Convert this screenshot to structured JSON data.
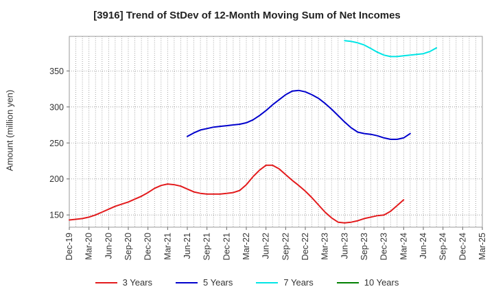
{
  "chart_data": {
    "type": "line",
    "title": "[3916]  Trend of StDev of 12-Month Moving Sum of Net Incomes",
    "xlabel": "",
    "ylabel": "Amount (million yen)",
    "x_tick_labels": [
      "Dec-19",
      "Mar-20",
      "Jun-20",
      "Sep-20",
      "Dec-20",
      "Mar-21",
      "Jun-21",
      "Sep-21",
      "Dec-21",
      "Mar-22",
      "Jun-22",
      "Sep-22",
      "Dec-22",
      "Mar-23",
      "Jun-23",
      "Sep-23",
      "Dec-23",
      "Mar-24",
      "Jun-24",
      "Sep-24",
      "Dec-24",
      "Mar-25"
    ],
    "y_ticks": [
      150,
      200,
      250,
      300,
      350
    ],
    "ylim": [
      133,
      398
    ],
    "grid": true,
    "legend_position": "bottom",
    "series": [
      {
        "name": "3 Years",
        "color": "#e31a1c",
        "start_index": 0,
        "values": [
          143,
          144,
          145,
          147,
          150,
          154,
          158,
          162,
          165,
          168,
          172,
          176,
          181,
          187,
          191,
          193,
          192,
          190,
          186,
          182,
          180,
          179,
          179,
          179,
          180,
          181,
          184,
          192,
          203,
          212,
          219,
          219,
          214,
          206,
          198,
          191,
          183,
          174,
          164,
          154,
          146,
          140,
          139,
          140,
          142,
          145,
          147,
          149,
          150,
          155,
          163,
          171
        ]
      },
      {
        "name": "5 Years",
        "color": "#0000cc",
        "start_index": 18,
        "values": [
          259,
          264,
          268,
          270,
          272,
          273,
          274,
          275,
          276,
          278,
          282,
          288,
          295,
          303,
          310,
          317,
          322,
          323,
          321,
          317,
          312,
          305,
          297,
          288,
          279,
          271,
          265,
          263,
          262,
          260,
          257,
          255,
          255,
          257,
          263
        ]
      },
      {
        "name": "7 Years",
        "color": "#00e5e5",
        "start_index": 42,
        "values": [
          392,
          391,
          389,
          386,
          381,
          376,
          372,
          370,
          370,
          371,
          372,
          373,
          374,
          377,
          382
        ]
      },
      {
        "name": "10 Years",
        "color": "#008000",
        "start_index": 0,
        "values": []
      }
    ]
  }
}
